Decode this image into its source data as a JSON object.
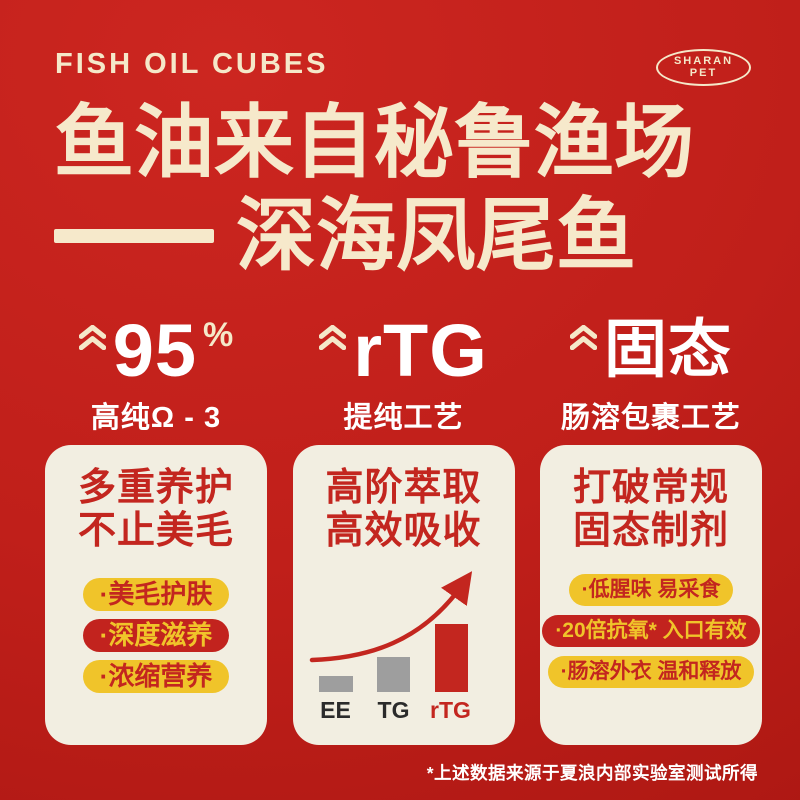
{
  "brand": {
    "eyebrow": "FISH OIL CUBES",
    "badge_top": "SHARAN",
    "badge_bottom": "PET"
  },
  "title": {
    "line1": "鱼油来自秘鲁渔场",
    "line2": "深海凤尾鱼"
  },
  "stats": [
    {
      "value": "95",
      "unit": "%",
      "subtitle": "高纯Ω - 3"
    },
    {
      "value": "rTG",
      "unit": "",
      "subtitle": "提纯工艺"
    },
    {
      "value": "固态",
      "unit": "",
      "subtitle": "肠溶包裹工艺"
    }
  ],
  "cards": [
    {
      "title_line1": "多重养护",
      "title_line2": "不止美毛",
      "pills": [
        {
          "label": "·美毛护肤",
          "variant": "yellow"
        },
        {
          "label": "·深度滋养",
          "variant": "red"
        },
        {
          "label": "·浓缩营养",
          "variant": "yellow"
        }
      ]
    },
    {
      "title_line1": "高阶萃取",
      "title_line2": "高效吸收"
    },
    {
      "title_line1": "打破常规",
      "title_line2": "固态制剂",
      "pills": [
        {
          "label": "·低腥味 易采食",
          "variant": "yellow"
        },
        {
          "label": "·20倍抗氧* 入口有效",
          "variant": "red"
        },
        {
          "label": "·肠溶外衣 温和释放",
          "variant": "yellow"
        }
      ]
    }
  ],
  "chart_data": {
    "type": "bar",
    "categories": [
      "EE",
      "TG",
      "rTG"
    ],
    "values": [
      16,
      35,
      68
    ],
    "value_note": "relative bar heights in px; rTG ≈ 4× EE, 2× TG",
    "bar_colors": [
      "#9e9e9e",
      "#9e9e9e",
      "#c3261f"
    ],
    "label_colors": [
      "#2b2b2b",
      "#2b2b2b",
      "#c3261f"
    ],
    "annotation": "red rising curve with arrowhead above bars",
    "title": "",
    "xlabel": "",
    "ylabel": "",
    "grid": false,
    "legend": false
  },
  "footer": {
    "note": "*上述数据来源于夏浪内部实验室测试所得"
  },
  "colors": {
    "background_red": "#c01f1a",
    "cream": "#f5e8c9",
    "card_cream": "#f2eee1",
    "accent_red": "#c3261f",
    "pill_red": "#c2231e",
    "yellow": "#f0c42a",
    "white": "#ffffff",
    "bar_gray": "#9e9e9e"
  }
}
